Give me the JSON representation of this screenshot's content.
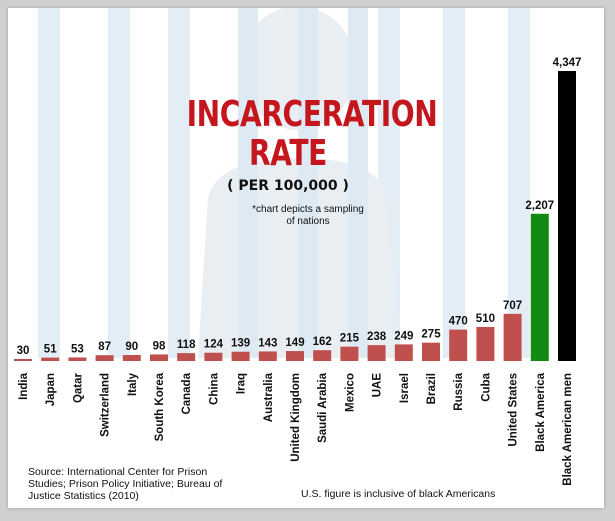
{
  "title_line1": "INCARCERATION",
  "title_line2": "RATE",
  "subtitle": "( PER 100,000 )",
  "note": "*chart depicts a sampling of nations",
  "source": "Source: International Center for Prison Studies; Prison Policy Initiative; Bureau of Justice Statistics (2010)",
  "us_note": "U.S. figure is inclusive of black Americans",
  "colors": {
    "default_bar": "#c0504d",
    "black_america": "#138a13",
    "black_american_men": "#000000",
    "title": "#c4161c"
  },
  "chart_data": {
    "type": "bar",
    "title": "INCARCERATION RATE",
    "subtitle": "( PER 100,000 )",
    "categories": [
      "India",
      "Japan",
      "Qatar",
      "Switzerland",
      "Italy",
      "South Korea",
      "Canada",
      "China",
      "Iraq",
      "Australia",
      "United Kingdom",
      "Saudi Arabia",
      "Mexico",
      "UAE",
      "Israel",
      "Brazil",
      "Russia",
      "Cuba",
      "United States",
      "Black America",
      "Black American men"
    ],
    "values": [
      30,
      51,
      53,
      87,
      90,
      98,
      118,
      124,
      139,
      143,
      149,
      162,
      215,
      238,
      249,
      275,
      470,
      510,
      707,
      2207,
      4347
    ],
    "data_labels": [
      "30",
      "51",
      "53",
      "87",
      "90",
      "98",
      "118",
      "124",
      "139",
      "143",
      "149",
      "162",
      "215",
      "238",
      "249",
      "275",
      "470",
      "510",
      "707",
      "2,207",
      "4,347"
    ],
    "bar_colors": [
      "#c0504d",
      "#c0504d",
      "#c0504d",
      "#c0504d",
      "#c0504d",
      "#c0504d",
      "#c0504d",
      "#c0504d",
      "#c0504d",
      "#c0504d",
      "#c0504d",
      "#c0504d",
      "#c0504d",
      "#c0504d",
      "#c0504d",
      "#c0504d",
      "#c0504d",
      "#c0504d",
      "#c0504d",
      "#138a13",
      "#000000"
    ],
    "xlabel": "",
    "ylabel": "",
    "ylim": [
      0,
      4347
    ],
    "grid": false,
    "legend": "none"
  }
}
